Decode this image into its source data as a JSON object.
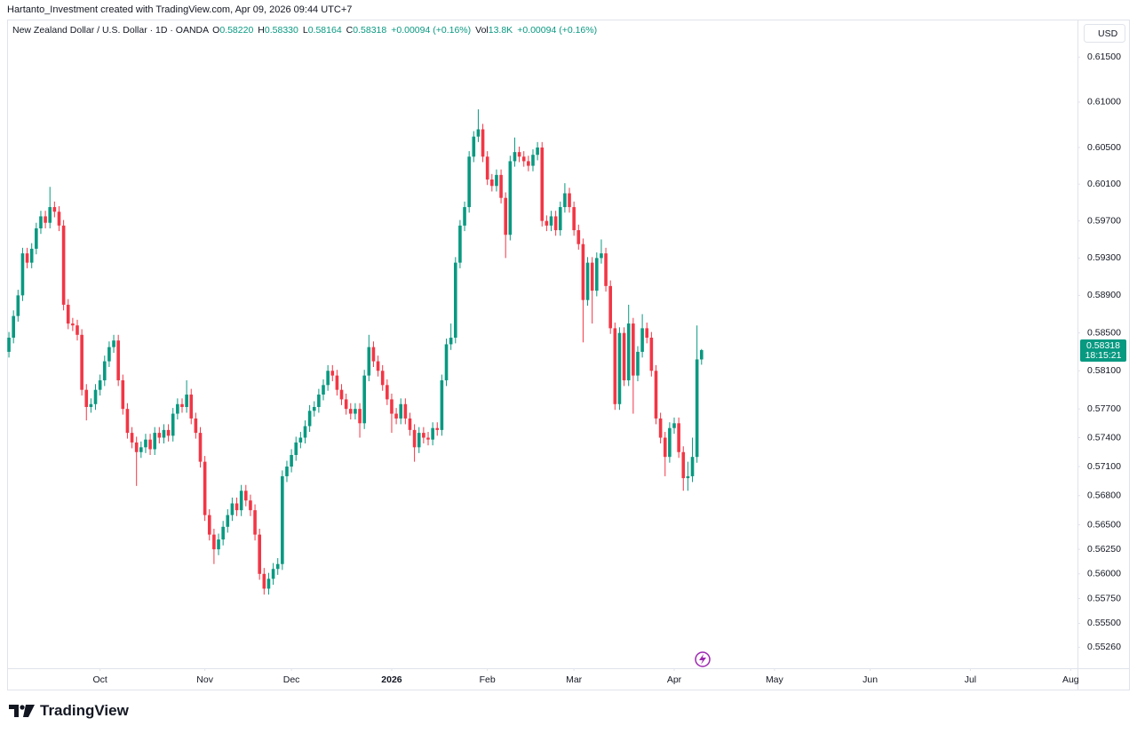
{
  "header": {
    "attribution": "Hartanto_Investment created with TradingView.com, Apr 09, 2026 09:44 UTC+7"
  },
  "chart_data": {
    "type": "candlestick",
    "title": "New Zealand Dollar / U.S. Dollar · 1D · OANDA",
    "legend": [
      {
        "key": "O",
        "value": "0.58220"
      },
      {
        "key": "H",
        "value": "0.58330"
      },
      {
        "key": "L",
        "value": "0.58164"
      },
      {
        "key": "C",
        "value": "0.58318"
      },
      {
        "value": "+0.00094 (+0.16%)"
      },
      {
        "key": "Vol",
        "value": "13.8K"
      },
      {
        "value": "+0.00094 (+0.16%)"
      }
    ],
    "currency": "USD",
    "last_price_label": "0.58318",
    "countdown": "18:15:21",
    "up_color": "#089981",
    "down_color": "#f23645",
    "log": true,
    "grid": false,
    "ylim": [
      0.5505,
      0.6192
    ],
    "yticks": [
      {
        "value": 0.615,
        "label": "0.61500"
      },
      {
        "value": 0.61,
        "label": "0.61000"
      },
      {
        "value": 0.605,
        "label": "0.60500"
      },
      {
        "value": 0.601,
        "label": "0.60100"
      },
      {
        "value": 0.597,
        "label": "0.59700"
      },
      {
        "value": 0.593,
        "label": "0.59300"
      },
      {
        "value": 0.589,
        "label": "0.58900"
      },
      {
        "value": 0.585,
        "label": "0.58500"
      },
      {
        "value": 0.581,
        "label": "0.58100"
      },
      {
        "value": 0.577,
        "label": "0.57700"
      },
      {
        "value": 0.574,
        "label": "0.57400"
      },
      {
        "value": 0.571,
        "label": "0.57100"
      },
      {
        "value": 0.568,
        "label": "0.56800"
      },
      {
        "value": 0.565,
        "label": "0.56500"
      },
      {
        "value": 0.5625,
        "label": "0.56250"
      },
      {
        "value": 0.56,
        "label": "0.56000"
      },
      {
        "value": 0.5575,
        "label": "0.55750"
      },
      {
        "value": 0.555,
        "label": "0.55500"
      },
      {
        "value": 0.5526,
        "label": "0.55260"
      }
    ],
    "xlim": [
      -0.4,
      234.5
    ],
    "xticks": [
      {
        "value": 20,
        "label": "Oct"
      },
      {
        "value": 43,
        "label": "Nov"
      },
      {
        "value": 62,
        "label": "Dec"
      },
      {
        "value": 84,
        "label": "2026"
      },
      {
        "value": 105,
        "label": "Feb"
      },
      {
        "value": 124,
        "label": "Mar"
      },
      {
        "value": 146,
        "label": "Apr"
      },
      {
        "value": 168,
        "label": "May"
      },
      {
        "value": 189,
        "label": "Jun"
      },
      {
        "value": 211,
        "label": "Jul"
      },
      {
        "value": 233,
        "label": "Aug"
      }
    ],
    "open": [
      0.583,
      0.5845,
      0.5868,
      0.589,
      0.5935,
      0.5925,
      0.594,
      0.5962,
      0.5975,
      0.5968,
      0.5985,
      0.598,
      0.5965,
      0.588,
      0.586,
      0.5858,
      0.5848,
      0.579,
      0.5772,
      0.5775,
      0.579,
      0.58,
      0.582,
      0.5835,
      0.5842,
      0.58,
      0.577,
      0.5745,
      0.5735,
      0.5725,
      0.573,
      0.5738,
      0.5728,
      0.5745,
      0.574,
      0.5748,
      0.5742,
      0.5765,
      0.5775,
      0.5772,
      0.5785,
      0.576,
      0.5745,
      0.5715,
      0.566,
      0.564,
      0.5625,
      0.5635,
      0.5648,
      0.566,
      0.5672,
      0.5665,
      0.5685,
      0.5675,
      0.5665,
      0.564,
      0.56,
      0.5585,
      0.5595,
      0.5605,
      0.561,
      0.57,
      0.571,
      0.5722,
      0.5735,
      0.574,
      0.5752,
      0.5768,
      0.5772,
      0.5785,
      0.5795,
      0.581,
      0.5805,
      0.579,
      0.578,
      0.577,
      0.5765,
      0.577,
      0.5755,
      0.5805,
      0.5835,
      0.582,
      0.581,
      0.5795,
      0.578,
      0.5765,
      0.576,
      0.5775,
      0.576,
      0.5748,
      0.573,
      0.5745,
      0.574,
      0.5738,
      0.575,
      0.5748,
      0.58,
      0.5838,
      0.5845,
      0.5925,
      0.5965,
      0.5985,
      0.604,
      0.6062,
      0.607,
      0.604,
      0.6015,
      0.6008,
      0.602,
      0.5995,
      0.5955,
      0.6035,
      0.6045,
      0.604,
      0.6035,
      0.603,
      0.6042,
      0.605,
      0.597,
      0.5965,
      0.5975,
      0.596,
      0.5985,
      0.6,
      0.5985,
      0.596,
      0.5945,
      0.5885,
      0.5925,
      0.5895,
      0.593,
      0.5935,
      0.59,
      0.5855,
      0.5775,
      0.585,
      0.58,
      0.586,
      0.5805,
      0.583,
      0.5855,
      0.5845,
      0.581,
      0.576,
      0.574,
      0.572,
      0.575,
      0.5755,
      0.5725,
      0.5698,
      0.57,
      0.572,
      0.5822
    ],
    "high": [
      0.5851,
      0.5874,
      0.5896,
      0.5941,
      0.5941,
      0.5946,
      0.5968,
      0.5981,
      0.5981,
      0.6007,
      0.5991,
      0.5986,
      0.5971,
      0.5886,
      0.5866,
      0.5864,
      0.5854,
      0.5796,
      0.5781,
      0.5796,
      0.5806,
      0.5826,
      0.5841,
      0.5848,
      0.5848,
      0.5806,
      0.5776,
      0.5751,
      0.5741,
      0.5736,
      0.5744,
      0.5744,
      0.5751,
      0.5751,
      0.5754,
      0.5754,
      0.5771,
      0.5781,
      0.5781,
      0.58,
      0.5791,
      0.5766,
      0.5751,
      0.5721,
      0.5666,
      0.5646,
      0.5641,
      0.5654,
      0.5666,
      0.5678,
      0.5678,
      0.5691,
      0.5691,
      0.5681,
      0.5671,
      0.5646,
      0.5606,
      0.5601,
      0.5611,
      0.5616,
      0.5706,
      0.5716,
      0.5728,
      0.5741,
      0.5746,
      0.5758,
      0.5774,
      0.5778,
      0.5791,
      0.5801,
      0.5816,
      0.5816,
      0.5811,
      0.5796,
      0.5786,
      0.5776,
      0.5776,
      0.5776,
      0.5811,
      0.5848,
      0.5841,
      0.5826,
      0.5816,
      0.5801,
      0.5786,
      0.5771,
      0.5781,
      0.5781,
      0.5766,
      0.5754,
      0.5751,
      0.5751,
      0.5746,
      0.5756,
      0.5756,
      0.5806,
      0.5844,
      0.586,
      0.5931,
      0.5971,
      0.5991,
      0.6046,
      0.6068,
      0.6092,
      0.6076,
      0.6046,
      0.6021,
      0.6026,
      0.6026,
      0.6001,
      0.6041,
      0.6061,
      0.6051,
      0.6046,
      0.6041,
      0.6048,
      0.6056,
      0.6056,
      0.5976,
      0.5981,
      0.5981,
      0.5991,
      0.6011,
      0.6006,
      0.5991,
      0.5966,
      0.5951,
      0.5931,
      0.5931,
      0.5936,
      0.595,
      0.5941,
      0.5906,
      0.5861,
      0.5856,
      0.5856,
      0.588,
      0.5866,
      0.5836,
      0.587,
      0.5861,
      0.5851,
      0.5816,
      0.5766,
      0.5746,
      0.5756,
      0.5761,
      0.5761,
      0.5731,
      0.5715,
      0.574,
      0.5858,
      0.5833
    ],
    "low": [
      0.5824,
      0.5839,
      0.5862,
      0.5884,
      0.5919,
      0.5919,
      0.5934,
      0.5956,
      0.5962,
      0.5962,
      0.5974,
      0.5959,
      0.5874,
      0.5854,
      0.5852,
      0.5842,
      0.5784,
      0.5758,
      0.5766,
      0.5769,
      0.5784,
      0.5794,
      0.5814,
      0.5829,
      0.5794,
      0.5764,
      0.5739,
      0.5729,
      0.569,
      0.5719,
      0.5724,
      0.5722,
      0.5722,
      0.5734,
      0.5734,
      0.5736,
      0.5736,
      0.5759,
      0.5766,
      0.5766,
      0.5754,
      0.5739,
      0.5709,
      0.5654,
      0.5634,
      0.561,
      0.5619,
      0.5629,
      0.5642,
      0.5654,
      0.5659,
      0.5659,
      0.5669,
      0.5659,
      0.5634,
      0.5594,
      0.5579,
      0.5579,
      0.5589,
      0.5599,
      0.5604,
      0.5694,
      0.5704,
      0.5716,
      0.5729,
      0.5734,
      0.5746,
      0.5762,
      0.5766,
      0.5779,
      0.5789,
      0.5799,
      0.5784,
      0.5774,
      0.5764,
      0.5759,
      0.5759,
      0.574,
      0.5749,
      0.5799,
      0.5814,
      0.5804,
      0.5789,
      0.5774,
      0.5745,
      0.5754,
      0.5754,
      0.5754,
      0.5742,
      0.5715,
      0.5724,
      0.5734,
      0.5732,
      0.5732,
      0.5742,
      0.5742,
      0.5794,
      0.5832,
      0.5839,
      0.5919,
      0.5959,
      0.5979,
      0.6034,
      0.6056,
      0.6034,
      0.6009,
      0.6002,
      0.6002,
      0.5989,
      0.593,
      0.5949,
      0.6029,
      0.6034,
      0.6029,
      0.6024,
      0.6024,
      0.6036,
      0.5964,
      0.5959,
      0.5959,
      0.5954,
      0.5954,
      0.5979,
      0.5979,
      0.5954,
      0.5939,
      0.584,
      0.5879,
      0.586,
      0.5889,
      0.5924,
      0.5894,
      0.5849,
      0.5769,
      0.5769,
      0.5794,
      0.5794,
      0.5765,
      0.5799,
      0.5824,
      0.5839,
      0.5804,
      0.5754,
      0.5734,
      0.57,
      0.5714,
      0.5744,
      0.5719,
      0.5685,
      0.5685,
      0.5694,
      0.5714,
      0.58164
    ],
    "close": [
      0.5845,
      0.5868,
      0.589,
      0.5935,
      0.5925,
      0.594,
      0.5962,
      0.5975,
      0.5968,
      0.5985,
      0.598,
      0.5965,
      0.588,
      0.586,
      0.5858,
      0.5848,
      0.579,
      0.5772,
      0.5775,
      0.579,
      0.58,
      0.582,
      0.5835,
      0.5842,
      0.58,
      0.577,
      0.5745,
      0.5735,
      0.5725,
      0.573,
      0.5738,
      0.5728,
      0.5745,
      0.574,
      0.5748,
      0.5742,
      0.5765,
      0.5775,
      0.5772,
      0.5785,
      0.576,
      0.5745,
      0.5715,
      0.566,
      0.564,
      0.5625,
      0.5635,
      0.5648,
      0.566,
      0.5672,
      0.5665,
      0.5685,
      0.5675,
      0.5665,
      0.564,
      0.56,
      0.5585,
      0.5595,
      0.5605,
      0.561,
      0.57,
      0.571,
      0.5722,
      0.5735,
      0.574,
      0.5752,
      0.5768,
      0.5772,
      0.5785,
      0.5795,
      0.581,
      0.5805,
      0.579,
      0.578,
      0.577,
      0.5765,
      0.577,
      0.5755,
      0.5805,
      0.5835,
      0.582,
      0.581,
      0.5795,
      0.578,
      0.5765,
      0.576,
      0.5775,
      0.576,
      0.5748,
      0.573,
      0.5745,
      0.574,
      0.5738,
      0.575,
      0.5748,
      0.58,
      0.5838,
      0.5845,
      0.5925,
      0.5965,
      0.5985,
      0.604,
      0.6062,
      0.607,
      0.604,
      0.6015,
      0.6008,
      0.602,
      0.5995,
      0.5955,
      0.6035,
      0.6045,
      0.604,
      0.6035,
      0.603,
      0.6042,
      0.605,
      0.597,
      0.5965,
      0.5975,
      0.596,
      0.5985,
      0.6,
      0.5985,
      0.596,
      0.5945,
      0.5885,
      0.5925,
      0.5895,
      0.593,
      0.5935,
      0.59,
      0.5855,
      0.5775,
      0.585,
      0.58,
      0.586,
      0.5805,
      0.583,
      0.5855,
      0.5845,
      0.581,
      0.576,
      0.574,
      0.572,
      0.575,
      0.5755,
      0.5725,
      0.5698,
      0.57,
      0.572,
      0.5822,
      0.58318
    ]
  },
  "footer": {
    "logo": "TradingView"
  }
}
